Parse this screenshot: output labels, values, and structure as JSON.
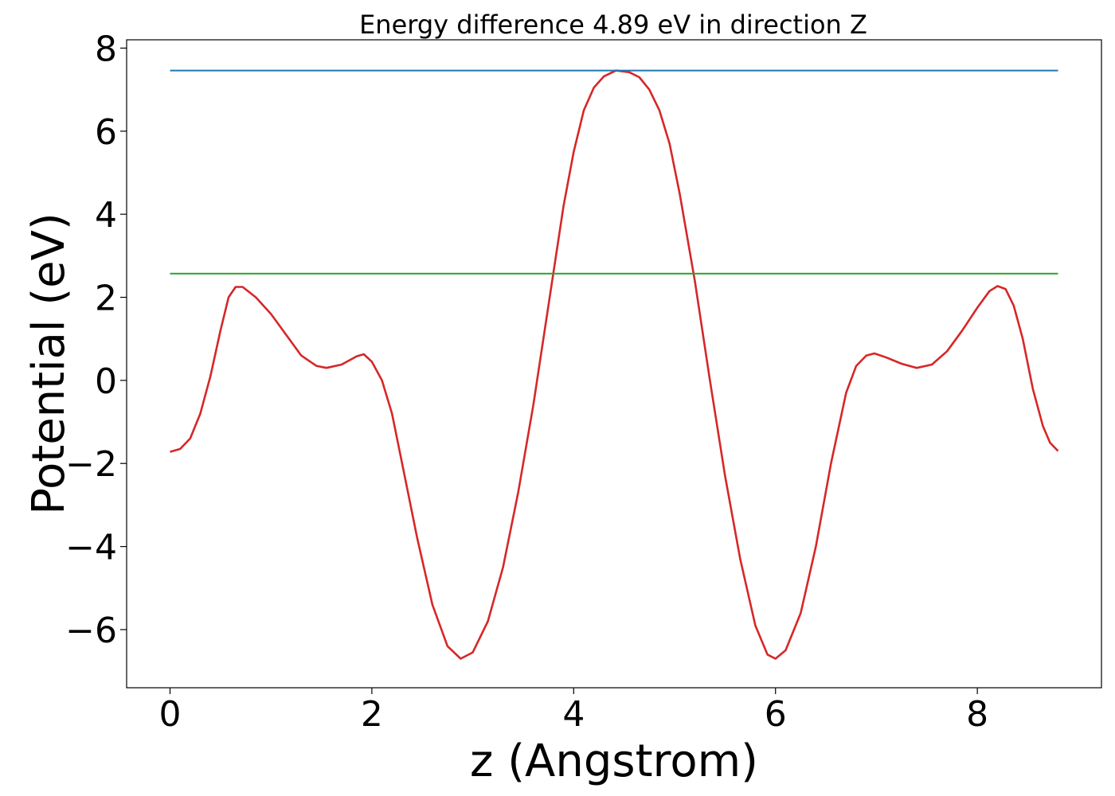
{
  "chart_data": {
    "type": "line",
    "title": "Energy difference 4.89 eV in direction Z",
    "xlabel": "z (Angstrom)",
    "ylabel": "Potential (eV)",
    "xlim": [
      -0.43,
      9.23
    ],
    "ylim": [
      -7.4,
      8.2
    ],
    "xticks": [
      0,
      2,
      4,
      6,
      8
    ],
    "yticks": [
      -6,
      -4,
      -2,
      0,
      2,
      4,
      6,
      8
    ],
    "grid": false,
    "series": [
      {
        "color": "#d62728",
        "kind": "curve",
        "points": [
          [
            0.0,
            -1.72
          ],
          [
            0.1,
            -1.65
          ],
          [
            0.2,
            -1.4
          ],
          [
            0.3,
            -0.8
          ],
          [
            0.4,
            0.1
          ],
          [
            0.5,
            1.2
          ],
          [
            0.58,
            2.0
          ],
          [
            0.65,
            2.25
          ],
          [
            0.72,
            2.25
          ],
          [
            0.85,
            2.0
          ],
          [
            1.0,
            1.6
          ],
          [
            1.15,
            1.1
          ],
          [
            1.3,
            0.6
          ],
          [
            1.45,
            0.35
          ],
          [
            1.55,
            0.3
          ],
          [
            1.7,
            0.38
          ],
          [
            1.85,
            0.58
          ],
          [
            1.92,
            0.63
          ],
          [
            2.0,
            0.45
          ],
          [
            2.1,
            0.0
          ],
          [
            2.2,
            -0.8
          ],
          [
            2.3,
            -2.0
          ],
          [
            2.45,
            -3.8
          ],
          [
            2.6,
            -5.4
          ],
          [
            2.75,
            -6.4
          ],
          [
            2.88,
            -6.7
          ],
          [
            3.0,
            -6.55
          ],
          [
            3.15,
            -5.8
          ],
          [
            3.3,
            -4.5
          ],
          [
            3.45,
            -2.7
          ],
          [
            3.6,
            -0.6
          ],
          [
            3.75,
            1.8
          ],
          [
            3.9,
            4.2
          ],
          [
            4.0,
            5.5
          ],
          [
            4.1,
            6.5
          ],
          [
            4.2,
            7.05
          ],
          [
            4.3,
            7.32
          ],
          [
            4.42,
            7.46
          ],
          [
            4.55,
            7.42
          ],
          [
            4.65,
            7.3
          ],
          [
            4.75,
            7.0
          ],
          [
            4.85,
            6.5
          ],
          [
            4.95,
            5.7
          ],
          [
            5.05,
            4.5
          ],
          [
            5.2,
            2.4
          ],
          [
            5.35,
            0.0
          ],
          [
            5.5,
            -2.3
          ],
          [
            5.65,
            -4.3
          ],
          [
            5.8,
            -5.9
          ],
          [
            5.92,
            -6.6
          ],
          [
            6.0,
            -6.7
          ],
          [
            6.1,
            -6.5
          ],
          [
            6.25,
            -5.6
          ],
          [
            6.4,
            -4.0
          ],
          [
            6.55,
            -2.0
          ],
          [
            6.7,
            -0.3
          ],
          [
            6.8,
            0.35
          ],
          [
            6.9,
            0.6
          ],
          [
            6.98,
            0.65
          ],
          [
            7.1,
            0.55
          ],
          [
            7.25,
            0.4
          ],
          [
            7.4,
            0.3
          ],
          [
            7.55,
            0.38
          ],
          [
            7.7,
            0.7
          ],
          [
            7.85,
            1.2
          ],
          [
            8.0,
            1.75
          ],
          [
            8.12,
            2.15
          ],
          [
            8.2,
            2.27
          ],
          [
            8.28,
            2.2
          ],
          [
            8.36,
            1.8
          ],
          [
            8.45,
            1.0
          ],
          [
            8.55,
            -0.2
          ],
          [
            8.65,
            -1.1
          ],
          [
            8.72,
            -1.5
          ],
          [
            8.8,
            -1.7
          ]
        ]
      },
      {
        "color": "#1f77b4",
        "kind": "hline",
        "y": 7.46,
        "x_range": [
          0.0,
          8.8
        ]
      },
      {
        "color": "#2ca02c",
        "kind": "hline",
        "y": 2.57,
        "x_range": [
          0.0,
          8.8
        ]
      }
    ]
  }
}
